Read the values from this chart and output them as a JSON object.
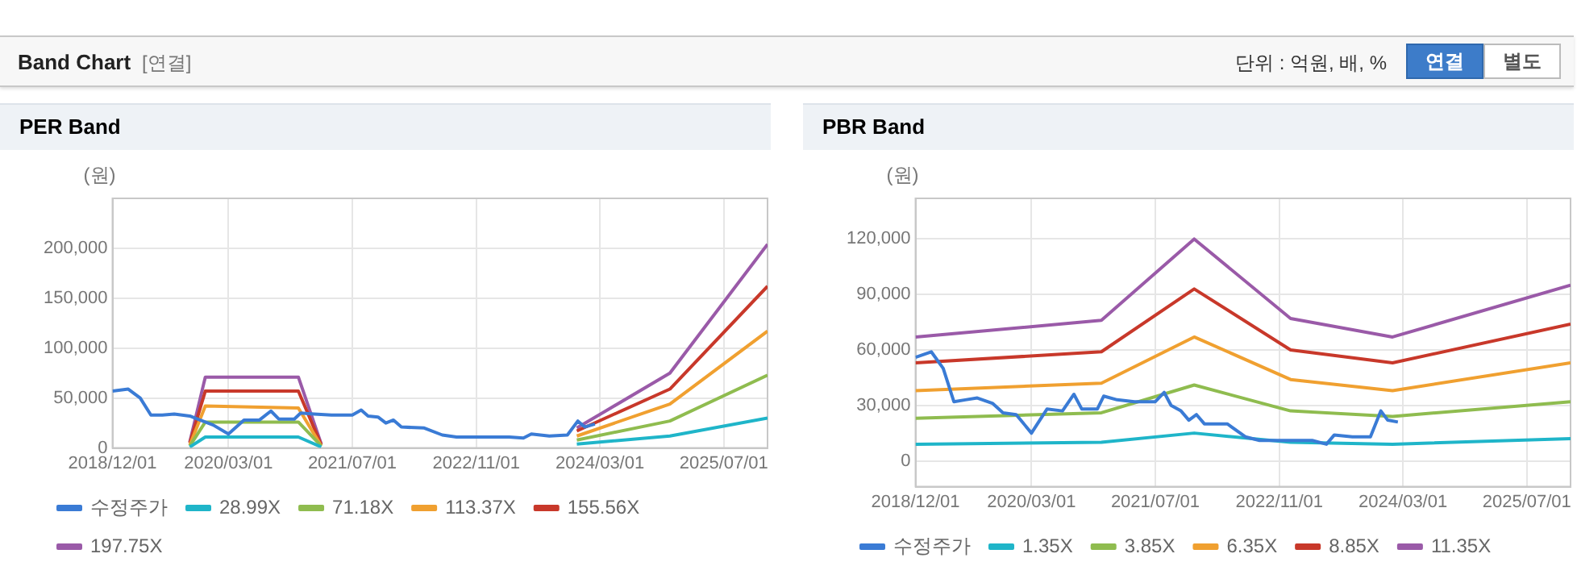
{
  "chart_data": [
    {
      "type": "line",
      "title": "PER Band",
      "ylabel": "(원)",
      "annotations": [
        "Band Chart",
        "[연결]",
        "단위 : 억원, 배, %",
        "연결",
        "별도"
      ],
      "xlim": [
        "2018-12-01",
        "2025-12-20"
      ],
      "xticks": [
        {
          "value": "2018-12-01",
          "label": "2018/12/01"
        },
        {
          "value": "2020-03-01",
          "label": "2020/03/01"
        },
        {
          "value": "2021-07-01",
          "label": "2021/07/01"
        },
        {
          "value": "2022-11-01",
          "label": "2022/11/01"
        },
        {
          "value": "2024-03-01",
          "label": "2024/03/01"
        },
        {
          "value": "2025-07-01",
          "label": "2025/07/01"
        }
      ],
      "ylim": [
        0,
        250000
      ],
      "yticks": [
        0,
        {
          "value": 50000,
          "label": "50,000"
        },
        {
          "value": 100000,
          "label": "100,000"
        },
        {
          "value": 150000,
          "label": "150,000"
        },
        {
          "value": 200000,
          "label": "200,000"
        }
      ],
      "grid": true,
      "legend": "bottom",
      "marker": "none",
      "line_style": "solid",
      "series": [
        {
          "name": "수정주가",
          "color": "#3a7bd5",
          "x": [
            "2018-12-01",
            "2019-02-01",
            "2019-03-20",
            "2019-05-01",
            "2019-06-15",
            "2019-08-01",
            "2019-10-01",
            "2019-11-10",
            "2020-01-01",
            "2020-03-01",
            "2020-05-01",
            "2020-07-01",
            "2020-08-15",
            "2020-09-15",
            "2020-11-15",
            "2020-12-10",
            "2021-02-01",
            "2021-04-10",
            "2021-07-01",
            "2021-08-05",
            "2021-09-01",
            "2021-10-10",
            "2021-11-10",
            "2021-12-10",
            "2022-01-10",
            "2022-04-10",
            "2022-06-20",
            "2022-08-15",
            "2023-03-10",
            "2023-05-05",
            "2023-06-05",
            "2023-08-15",
            "2023-10-25",
            "2023-12-05",
            "2024-01-01",
            "2024-02-10"
          ],
          "values": [
            57000,
            59000,
            50000,
            33000,
            33000,
            34000,
            32000,
            28000,
            23000,
            14000,
            28000,
            28000,
            37000,
            29000,
            29000,
            35000,
            34000,
            33000,
            33000,
            38000,
            32000,
            31000,
            25000,
            28000,
            21000,
            20000,
            13000,
            11000,
            11000,
            10000,
            14000,
            12000,
            13000,
            27000,
            21000,
            24000
          ]
        },
        {
          "name": "28.99X",
          "color": "#1fb5c9",
          "x": [
            "2019-10-01",
            "2019-12-01",
            "2020-12-01",
            "2021-03-01",
            "2022-06-01",
            "2023-12-01",
            "2024-12-01",
            "2025-12-20"
          ],
          "values": [
            1000,
            11000,
            11000,
            1000,
            null,
            4000,
            12000,
            30000
          ]
        },
        {
          "name": "71.18X",
          "color": "#8fbc4f",
          "x": [
            "2019-10-01",
            "2019-12-01",
            "2020-12-01",
            "2021-03-01",
            "2022-06-01",
            "2023-12-01",
            "2024-12-01",
            "2025-12-20"
          ],
          "values": [
            2000,
            26000,
            26000,
            2000,
            null,
            8000,
            27000,
            73000
          ]
        },
        {
          "name": "113.37X",
          "color": "#f0a030",
          "x": [
            "2019-10-01",
            "2019-12-01",
            "2020-12-01",
            "2021-03-01",
            "2022-06-01",
            "2023-12-01",
            "2024-12-01",
            "2025-12-20"
          ],
          "values": [
            3000,
            42000,
            40000,
            2000,
            null,
            12000,
            44000,
            117000
          ]
        },
        {
          "name": "155.56X",
          "color": "#c8382a",
          "x": [
            "2019-10-01",
            "2019-12-01",
            "2020-12-01",
            "2021-03-01",
            "2022-06-01",
            "2023-12-01",
            "2024-12-01",
            "2025-12-20"
          ],
          "values": [
            5000,
            57000,
            57000,
            3000,
            null,
            17000,
            59000,
            162000
          ]
        },
        {
          "name": "197.75X",
          "color": "#9a5aa8",
          "x": [
            "2019-10-01",
            "2019-12-01",
            "2020-12-01",
            "2021-03-01",
            "2022-06-01",
            "2023-12-01",
            "2024-12-01",
            "2025-12-20"
          ],
          "values": [
            6000,
            71000,
            71000,
            4000,
            null,
            20000,
            75000,
            204000
          ]
        }
      ]
    },
    {
      "type": "line",
      "title": "PBR Band",
      "ylabel": "(원)",
      "xlim": [
        "2018-12-01",
        "2025-12-20"
      ],
      "xticks": [
        {
          "value": "2018-12-01",
          "label": "2018/12/01"
        },
        {
          "value": "2020-03-01",
          "label": "2020/03/01"
        },
        {
          "value": "2021-07-01",
          "label": "2021/07/01"
        },
        {
          "value": "2022-11-01",
          "label": "2022/11/01"
        },
        {
          "value": "2024-03-01",
          "label": "2024/03/01"
        },
        {
          "value": "2025-07-01",
          "label": "2025/07/01"
        }
      ],
      "ylim": [
        -14000,
        142000
      ],
      "yticks": [
        0,
        {
          "value": 30000,
          "label": "30,000"
        },
        {
          "value": 60000,
          "label": "60,000"
        },
        {
          "value": 90000,
          "label": "90,000"
        },
        {
          "value": 120000,
          "label": "120,000"
        }
      ],
      "grid": true,
      "legend": "bottom",
      "marker": "none",
      "line_style": "solid",
      "series": [
        {
          "name": "수정주가",
          "color": "#3a7bd5",
          "x": [
            "2018-12-01",
            "2019-02-01",
            "2019-03-20",
            "2019-05-01",
            "2019-06-15",
            "2019-08-01",
            "2019-10-01",
            "2019-11-10",
            "2020-01-01",
            "2020-03-01",
            "2020-05-01",
            "2020-07-01",
            "2020-08-15",
            "2020-09-15",
            "2020-11-15",
            "2020-12-10",
            "2021-02-01",
            "2021-04-10",
            "2021-07-01",
            "2021-08-05",
            "2021-09-01",
            "2021-10-10",
            "2021-11-10",
            "2021-12-10",
            "2022-01-10",
            "2022-04-10",
            "2022-06-20",
            "2022-08-15",
            "2023-03-10",
            "2023-05-05",
            "2023-06-05",
            "2023-08-15",
            "2023-10-25",
            "2023-12-05",
            "2024-01-01",
            "2024-02-10"
          ],
          "values": [
            56000,
            59000,
            50000,
            32000,
            33000,
            34000,
            31000,
            26000,
            25000,
            15000,
            28000,
            27000,
            36000,
            28000,
            28000,
            35000,
            33000,
            32000,
            32000,
            37000,
            30000,
            27000,
            22000,
            25000,
            20000,
            20000,
            13000,
            11000,
            11000,
            9000,
            14000,
            13000,
            13000,
            27000,
            22000,
            21000
          ]
        },
        {
          "name": "1.35X",
          "color": "#1fb5c9",
          "x": [
            "2018-12-01",
            "2020-12-01",
            "2021-12-01",
            "2022-12-15",
            "2024-01-20",
            "2025-12-20"
          ],
          "values": [
            9000,
            10000,
            15000,
            10000,
            9000,
            12000
          ]
        },
        {
          "name": "3.85X",
          "color": "#8fbc4f",
          "x": [
            "2018-12-01",
            "2020-12-01",
            "2021-12-01",
            "2022-12-15",
            "2024-01-20",
            "2025-12-20"
          ],
          "values": [
            23000,
            26000,
            41000,
            27000,
            24000,
            32000
          ]
        },
        {
          "name": "6.35X",
          "color": "#f0a030",
          "x": [
            "2018-12-01",
            "2020-12-01",
            "2021-12-01",
            "2022-12-15",
            "2024-01-20",
            "2025-12-20"
          ],
          "values": [
            38000,
            42000,
            67000,
            44000,
            38000,
            53000
          ]
        },
        {
          "name": "8.85X",
          "color": "#c8382a",
          "x": [
            "2018-12-01",
            "2020-12-01",
            "2021-12-01",
            "2022-12-15",
            "2024-01-20",
            "2025-12-20"
          ],
          "values": [
            53000,
            59000,
            93000,
            60000,
            53000,
            74000
          ]
        },
        {
          "name": "11.35X",
          "color": "#9a5aa8",
          "x": [
            "2018-12-01",
            "2020-12-01",
            "2021-12-01",
            "2022-12-15",
            "2024-01-20",
            "2025-12-20"
          ],
          "values": [
            67000,
            76000,
            120000,
            77000,
            67000,
            95000
          ]
        }
      ]
    }
  ]
}
